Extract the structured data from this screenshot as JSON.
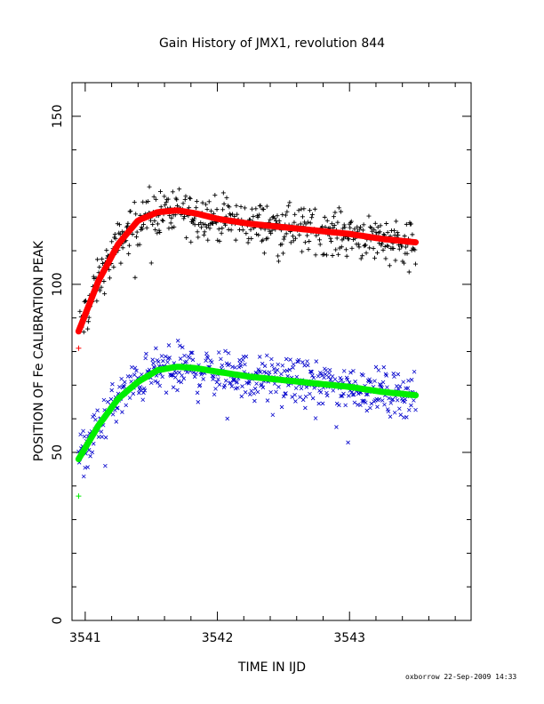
{
  "chart_data": {
    "type": "scatter",
    "title": "Gain History of JMX1, revolution 844",
    "xlabel": "TIME IN IJD",
    "ylabel": "POSITION OF Fe CALIBRATION PEAK",
    "xlim": [
      3540.9,
      3543.92
    ],
    "ylim": [
      0,
      160
    ],
    "xticks": [
      3541,
      3542,
      3543
    ],
    "yticks": [
      0,
      50,
      100,
      150
    ],
    "grid": false,
    "legend": "none",
    "series": [
      {
        "marker": "+",
        "color": "#000000",
        "fit_color": "#ff0000",
        "fit": [
          [
            3540.95,
            86
          ],
          [
            3541.1,
            101
          ],
          [
            3541.25,
            112
          ],
          [
            3541.4,
            119
          ],
          [
            3541.55,
            121.5
          ],
          [
            3541.7,
            122
          ],
          [
            3541.85,
            121
          ],
          [
            3542.0,
            119.5
          ],
          [
            3542.25,
            118
          ],
          [
            3542.5,
            117
          ],
          [
            3542.75,
            116
          ],
          [
            3543.0,
            115
          ],
          [
            3543.25,
            113.5
          ],
          [
            3543.5,
            112.5
          ]
        ],
        "spread": 4,
        "start_marker": [
          3540.95,
          81
        ]
      },
      {
        "marker": "x",
        "color": "#0000cc",
        "fit_color": "#00ee00",
        "fit": [
          [
            3540.95,
            48
          ],
          [
            3541.1,
            58
          ],
          [
            3541.25,
            66
          ],
          [
            3541.4,
            71
          ],
          [
            3541.55,
            74.5
          ],
          [
            3541.7,
            75.5
          ],
          [
            3541.85,
            75
          ],
          [
            3542.0,
            74
          ],
          [
            3542.25,
            72.5
          ],
          [
            3542.5,
            71.5
          ],
          [
            3542.75,
            70.5
          ],
          [
            3543.0,
            69.5
          ],
          [
            3543.25,
            68
          ],
          [
            3543.5,
            67
          ]
        ],
        "spread": 4,
        "start_marker": [
          3540.95,
          37
        ]
      }
    ]
  },
  "footer": "oxborrow 22-Sep-2009 14:33",
  "colors": {
    "frame": "#000000",
    "series1_points": "#000000",
    "series1_fit": "#ff0000",
    "series2_points": "#0000cc",
    "series2_fit": "#00ee00"
  }
}
